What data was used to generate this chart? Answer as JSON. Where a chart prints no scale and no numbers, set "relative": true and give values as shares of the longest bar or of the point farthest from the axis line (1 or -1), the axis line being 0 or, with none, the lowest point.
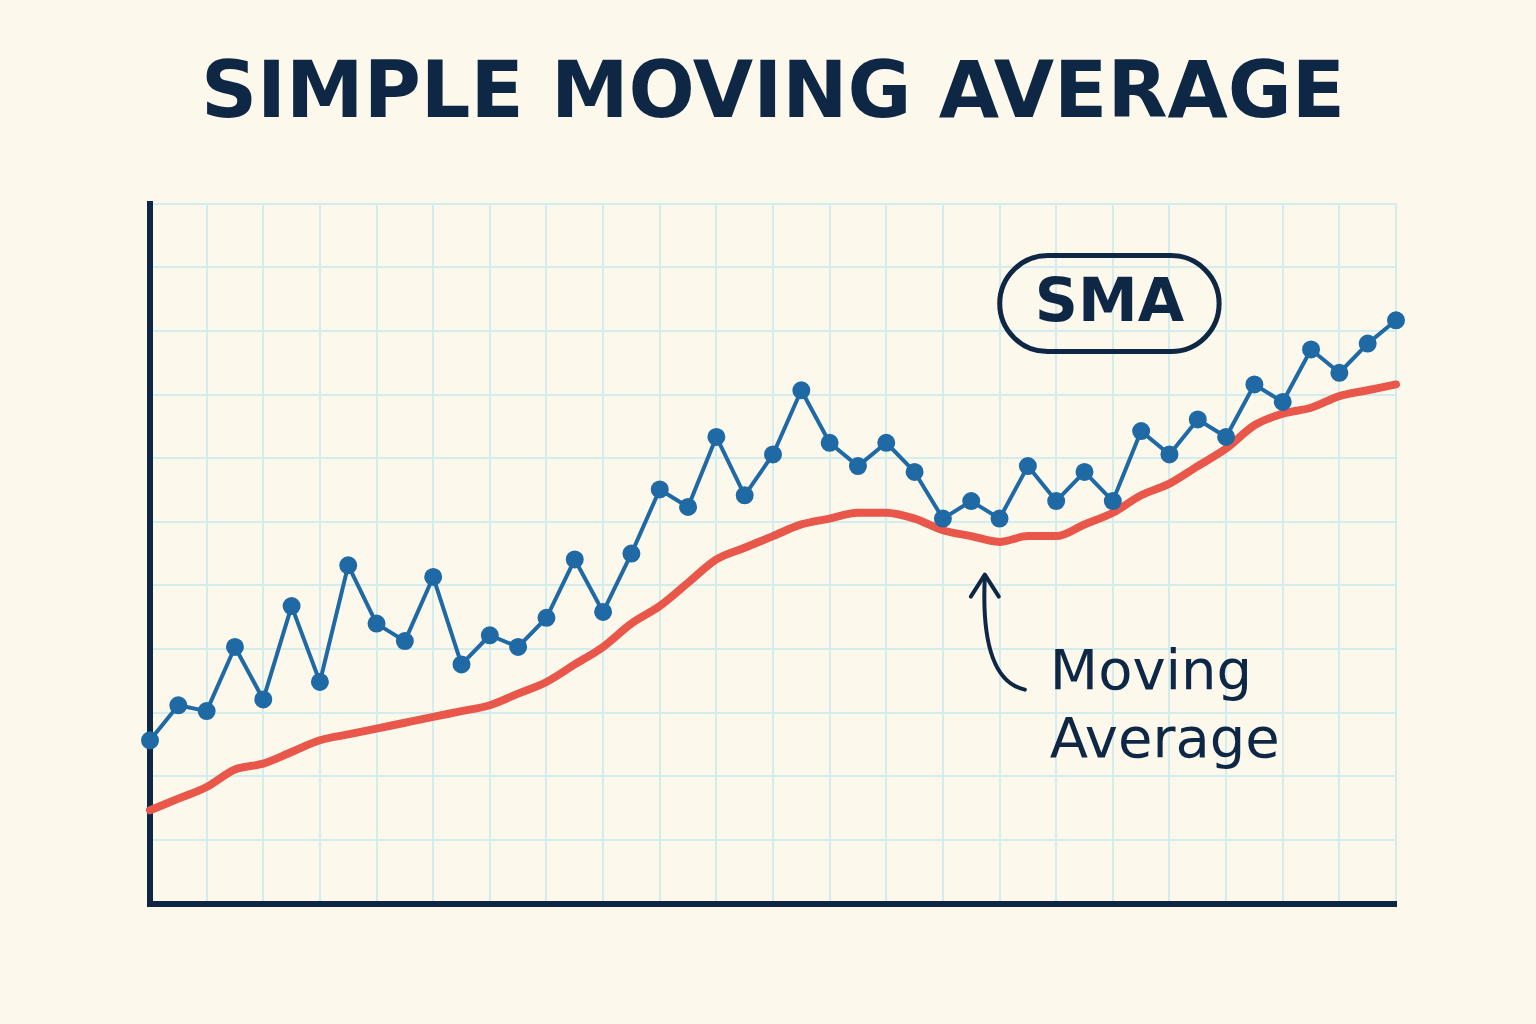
{
  "chart_data": {
    "type": "line",
    "title": "SIMPLE MOVING AVERAGE",
    "relative": true,
    "grid": true,
    "legend": false,
    "line_style": "solid",
    "categories": [
      null,
      null,
      null,
      null,
      null,
      null,
      null,
      null,
      null,
      null,
      null,
      null,
      null,
      null,
      null,
      null,
      null,
      null,
      null,
      null,
      null,
      null,
      null,
      null,
      null,
      null,
      null,
      null,
      null,
      null,
      null,
      null,
      null,
      null,
      null,
      null,
      null,
      null,
      null,
      null,
      null,
      null,
      null,
      null,
      null
    ],
    "series": [
      {
        "color": "#1f6aa5",
        "marker": "circle",
        "values": [
          0.28,
          0.34,
          0.33,
          0.44,
          0.35,
          0.51,
          0.38,
          0.58,
          0.48,
          0.45,
          0.56,
          0.41,
          0.46,
          0.44,
          0.49,
          0.59,
          0.5,
          0.6,
          0.71,
          0.68,
          0.8,
          0.7,
          0.77,
          0.88,
          0.79,
          0.75,
          0.79,
          0.74,
          0.66,
          0.69,
          0.66,
          0.75,
          0.69,
          0.74,
          0.69,
          0.81,
          0.77,
          0.83,
          0.8,
          0.89,
          0.86,
          0.95,
          0.91,
          0.96,
          1
        ]
      },
      {
        "color": "#e8574a",
        "marker": "none",
        "values": [
          0.16,
          0.18,
          0.2,
          0.23,
          0.24,
          0.26,
          0.28,
          0.29,
          0.3,
          0.31,
          0.32,
          0.33,
          0.34,
          0.36,
          0.38,
          0.41,
          0.44,
          0.48,
          0.51,
          0.55,
          0.59,
          0.61,
          0.63,
          0.65,
          0.66,
          0.67,
          0.67,
          0.66,
          0.64,
          0.63,
          0.62,
          0.63,
          0.63,
          0.65,
          0.67,
          0.7,
          0.72,
          0.75,
          0.78,
          0.82,
          0.84,
          0.85,
          0.87,
          0.88,
          0.89
        ]
      }
    ],
    "annotations": [
      "SMA",
      "Moving Average"
    ]
  }
}
